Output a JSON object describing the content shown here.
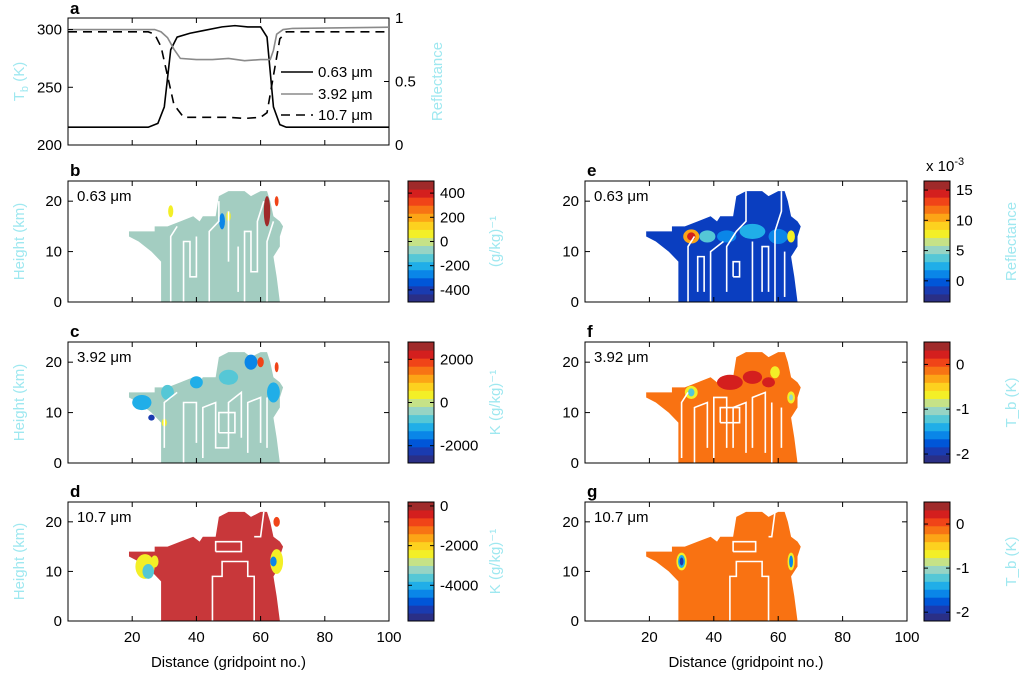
{
  "chart_data": [
    {
      "panel": "a",
      "type": "line",
      "ylabel": "T_b (K)",
      "ylabel_main": "T",
      "ylabel_sub": "b",
      "ylabel_unit": " (K)",
      "y2label": "Reflectance",
      "xlim": [
        0,
        100
      ],
      "ylim": [
        200,
        310
      ],
      "y2lim": [
        0,
        1
      ],
      "yticks": [
        "200",
        "250",
        "300"
      ],
      "y2ticks": [
        "0",
        "0.5",
        "1"
      ],
      "legend": [
        "0.63 μm",
        "3.92 μm",
        "10.7 μm"
      ],
      "legend_position": "lower-right",
      "series": [
        {
          "name": "0.63 μm",
          "axis": "right",
          "style": "solid-black",
          "x": [
            0,
            25,
            28,
            30,
            32,
            34,
            38,
            42,
            48,
            52,
            56,
            60,
            62,
            64,
            66,
            68,
            100
          ],
          "y": [
            0.14,
            0.14,
            0.17,
            0.3,
            0.75,
            0.85,
            0.88,
            0.9,
            0.93,
            0.94,
            0.93,
            0.93,
            0.85,
            0.3,
            0.16,
            0.14,
            0.14
          ]
        },
        {
          "name": "3.92 μm",
          "axis": "left",
          "style": "solid-gray",
          "x": [
            0,
            27,
            29,
            31,
            33,
            35,
            40,
            45,
            50,
            55,
            60,
            63,
            64,
            65,
            67,
            70,
            100
          ],
          "y": [
            300,
            300,
            298,
            293,
            283,
            275,
            274,
            274,
            275,
            273,
            274,
            274,
            282,
            296,
            300,
            301,
            302
          ]
        },
        {
          "name": "10.7 μm",
          "axis": "left",
          "style": "dashed-black",
          "x": [
            0,
            25,
            27,
            29,
            31,
            33,
            36,
            40,
            50,
            55,
            60,
            62,
            64,
            66,
            68,
            100
          ],
          "y": [
            298,
            298,
            296,
            285,
            260,
            235,
            224,
            224,
            224,
            223,
            224,
            228,
            260,
            292,
            298,
            298
          ]
        }
      ]
    },
    {
      "panel": "b",
      "type": "heatmap",
      "inset": "0.63 μm",
      "ylabel": "Height (km)",
      "cbar_label": "(g/kg)⁻¹",
      "xlim": [
        0,
        100
      ],
      "ylim": [
        0,
        24
      ],
      "yticks": [
        "0",
        "10",
        "20"
      ],
      "cbar_ticks": [
        "400",
        "200",
        "0",
        "-200",
        "-400"
      ],
      "cbar_range": [
        -500,
        500
      ],
      "background": 0
    },
    {
      "panel": "c",
      "type": "heatmap",
      "inset": "3.92 μm",
      "ylabel": "Height (km)",
      "cbar_label": "K (g/kg)⁻¹",
      "xlim": [
        0,
        100
      ],
      "ylim": [
        0,
        24
      ],
      "yticks": [
        "0",
        "10",
        "20"
      ],
      "cbar_ticks": [
        "2000",
        "0",
        "-2000"
      ],
      "cbar_range": [
        -2800,
        2800
      ],
      "background": 0
    },
    {
      "panel": "d",
      "type": "heatmap",
      "inset": "10.7 μm",
      "ylabel": "Height (km)",
      "cbar_label": "K (g/kg)⁻¹",
      "xlim": [
        0,
        100
      ],
      "ylim": [
        0,
        24
      ],
      "yticks": [
        "0",
        "10",
        "20"
      ],
      "xticks": [
        "20",
        "40",
        "60",
        "80",
        "100"
      ],
      "xlabel": "Distance (gridpoint no.)",
      "cbar_ticks": [
        "0",
        "-2000",
        "-4000"
      ],
      "cbar_range": [
        -5800,
        200
      ],
      "background": 0
    },
    {
      "panel": "e",
      "type": "heatmap",
      "inset": "0.63 μm",
      "cbar_label": "Reflectance",
      "cbar_exponent": "x 10",
      "cbar_exponent_power": "-3",
      "xlim": [
        0,
        100
      ],
      "ylim": [
        0,
        24
      ],
      "yticks": [
        "0",
        "10",
        "20"
      ],
      "cbar_ticks": [
        "15",
        "10",
        "5",
        "0"
      ],
      "cbar_range": [
        -3.5,
        16.5
      ],
      "background": 0
    },
    {
      "panel": "f",
      "type": "heatmap",
      "inset": "3.92 μm",
      "cbar_label": "T_b (K)",
      "xlim": [
        0,
        100
      ],
      "ylim": [
        0,
        24
      ],
      "yticks": [
        "0",
        "10",
        "20"
      ],
      "cbar_ticks": [
        "0",
        "-1",
        "-2"
      ],
      "cbar_range": [
        -2.2,
        0.5
      ],
      "background": 0
    },
    {
      "panel": "g",
      "type": "heatmap",
      "inset": "10.7 μm",
      "cbar_label": "T_b (K)",
      "xlim": [
        0,
        100
      ],
      "ylim": [
        0,
        24
      ],
      "yticks": [
        "0",
        "10",
        "20"
      ],
      "xticks": [
        "20",
        "40",
        "60",
        "80",
        "100"
      ],
      "xlabel": "Distance (gridpoint no.)",
      "cbar_ticks": [
        "0",
        "-1",
        "-2"
      ],
      "cbar_range": [
        -2.2,
        0.5
      ],
      "background": 0
    }
  ]
}
